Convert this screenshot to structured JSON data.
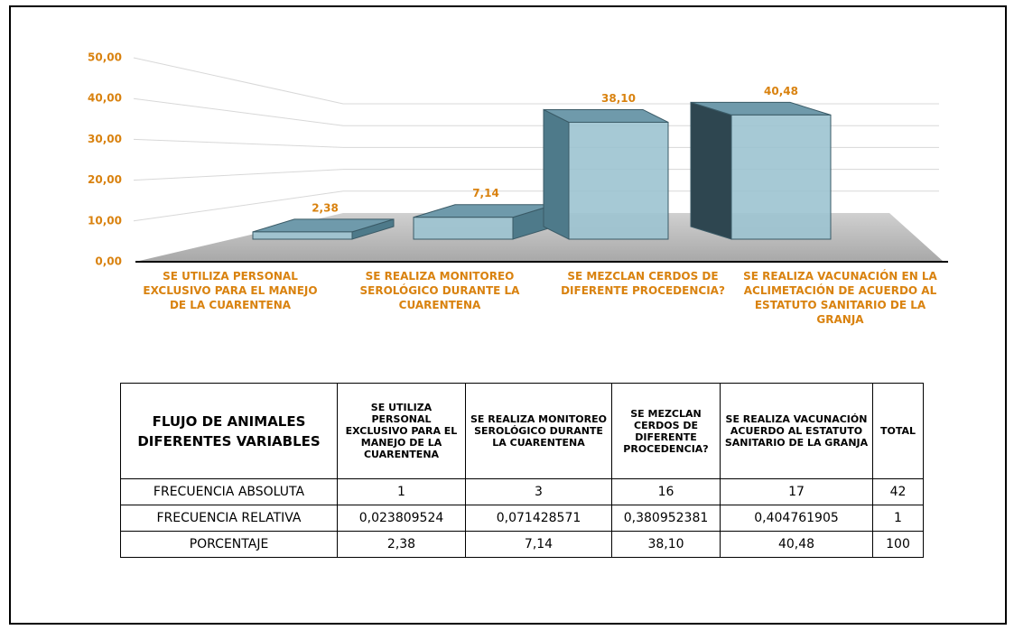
{
  "chart_data": {
    "type": "bar3d",
    "categories": [
      "SE UTILIZA PERSONAL EXCLUSIVO PARA EL MANEJO DE LA CUARENTENA",
      "SE REALIZA MONITOREO SEROLÓGICO DURANTE LA CUARENTENA",
      "SE MEZCLAN CERDOS DE DIFERENTE PROCEDENCIA?",
      "SE REALIZA VACUNACIÓN EN LA ACLIMETACIÓN DE ACUERDO AL ESTATUTO SANITARIO DE LA GRANJA"
    ],
    "values": [
      2.38,
      7.14,
      38.1,
      40.48
    ],
    "value_labels": [
      "2,38",
      "7,14",
      "38,10",
      "40,48"
    ],
    "color": "#9cc3d0",
    "ylim": [
      0,
      50
    ],
    "yticks": [
      {
        "value": 0,
        "label": "0,00"
      },
      {
        "value": 10,
        "label": "10,00"
      },
      {
        "value": 20,
        "label": "20,00"
      },
      {
        "value": 30,
        "label": "30,00"
      },
      {
        "value": 40,
        "label": "40,00"
      },
      {
        "value": 50,
        "label": "50,00"
      }
    ],
    "grid": true
  },
  "table": {
    "header": [
      "FLUJO DE ANIMALES DIFERENTES VARIABLES",
      "SE UTILIZA PERSONAL EXCLUSIVO PARA EL MANEJO DE LA CUARENTENA",
      "SE REALIZA MONITOREO SEROLÓGICO DURANTE LA CUARENTENA",
      "SE MEZCLAN CERDOS DE DIFERENTE PROCEDENCIA?",
      "SE REALIZA VACUNACIÓN ACUERDO AL ESTATUTO SANITARIO DE LA GRANJA",
      "TOTAL"
    ],
    "rows": [
      [
        "FRECUENCIA ABSOLUTA",
        "1",
        "3",
        "16",
        "17",
        "42"
      ],
      [
        "FRECUENCIA RELATIVA",
        "0,023809524",
        "0,071428571",
        "0,380952381",
        "0,404761905",
        "1"
      ],
      [
        "PORCENTAJE",
        "2,38",
        "7,14",
        "38,10",
        "40,48",
        "100"
      ]
    ]
  }
}
